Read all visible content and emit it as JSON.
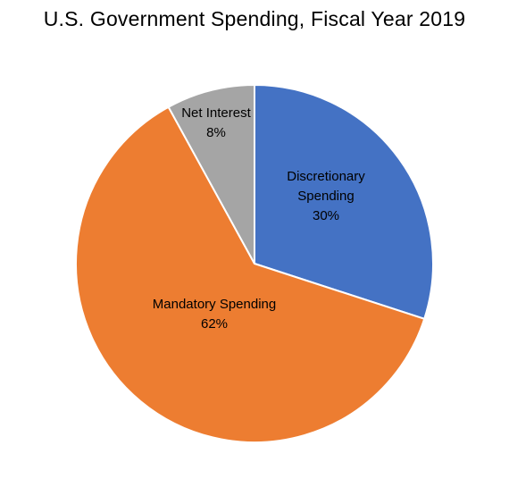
{
  "chart_data": {
    "type": "pie",
    "title": "U.S. Government Spending, Fiscal Year 2019",
    "slices": [
      {
        "label_lines": [
          "Discretionary",
          "Spending"
        ],
        "value": 30,
        "value_label": "30%",
        "color": "#4472C4"
      },
      {
        "label_lines": [
          "Mandatory Spending"
        ],
        "value": 62,
        "value_label": "62%",
        "color": "#ED7D31"
      },
      {
        "label_lines": [
          "Net Interest"
        ],
        "value": 8,
        "value_label": "8%",
        "color": "#A5A5A5"
      }
    ],
    "start_angle": "12 o'clock",
    "direction": "clockwise",
    "legend": "none"
  }
}
